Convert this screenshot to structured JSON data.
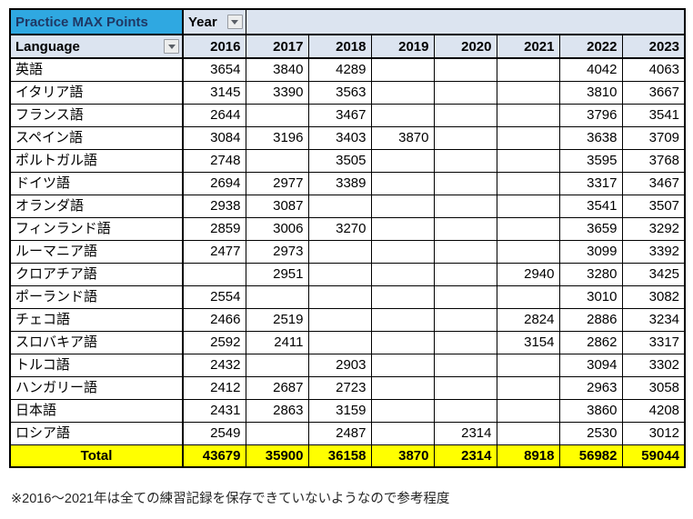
{
  "pivot": {
    "title": "Practice MAX Points",
    "year_field_label": "Year",
    "language_field_label": "Language",
    "years": [
      "2016",
      "2017",
      "2018",
      "2019",
      "2020",
      "2021",
      "2022",
      "2023"
    ],
    "rows": [
      {
        "language": "英語",
        "values": [
          "3654",
          "3840",
          "4289",
          "",
          "",
          "",
          "4042",
          "4063"
        ]
      },
      {
        "language": "イタリア語",
        "values": [
          "3145",
          "3390",
          "3563",
          "",
          "",
          "",
          "3810",
          "3667"
        ]
      },
      {
        "language": "フランス語",
        "values": [
          "2644",
          "",
          "3467",
          "",
          "",
          "",
          "3796",
          "3541"
        ]
      },
      {
        "language": "スペイン語",
        "values": [
          "3084",
          "3196",
          "3403",
          "3870",
          "",
          "",
          "3638",
          "3709"
        ]
      },
      {
        "language": "ポルトガル語",
        "values": [
          "2748",
          "",
          "3505",
          "",
          "",
          "",
          "3595",
          "3768"
        ]
      },
      {
        "language": "ドイツ語",
        "values": [
          "2694",
          "2977",
          "3389",
          "",
          "",
          "",
          "3317",
          "3467"
        ]
      },
      {
        "language": "オランダ語",
        "values": [
          "2938",
          "3087",
          "",
          "",
          "",
          "",
          "3541",
          "3507"
        ]
      },
      {
        "language": "フィンランド語",
        "values": [
          "2859",
          "3006",
          "3270",
          "",
          "",
          "",
          "3659",
          "3292"
        ]
      },
      {
        "language": "ルーマニア語",
        "values": [
          "2477",
          "2973",
          "",
          "",
          "",
          "",
          "3099",
          "3392"
        ]
      },
      {
        "language": "クロアチア語",
        "values": [
          "",
          "2951",
          "",
          "",
          "",
          "2940",
          "3280",
          "3425"
        ]
      },
      {
        "language": "ポーランド語",
        "values": [
          "2554",
          "",
          "",
          "",
          "",
          "",
          "3010",
          "3082"
        ]
      },
      {
        "language": "チェコ語",
        "values": [
          "2466",
          "2519",
          "",
          "",
          "",
          "2824",
          "2886",
          "3234"
        ]
      },
      {
        "language": "スロバキア語",
        "values": [
          "2592",
          "2411",
          "",
          "",
          "",
          "3154",
          "2862",
          "3317"
        ]
      },
      {
        "language": "トルコ語",
        "values": [
          "2432",
          "",
          "2903",
          "",
          "",
          "",
          "3094",
          "3302"
        ]
      },
      {
        "language": "ハンガリー語",
        "values": [
          "2412",
          "2687",
          "2723",
          "",
          "",
          "",
          "2963",
          "3058"
        ]
      },
      {
        "language": "日本語",
        "values": [
          "2431",
          "2863",
          "3159",
          "",
          "",
          "",
          "3860",
          "4208"
        ]
      },
      {
        "language": "ロシア語",
        "values": [
          "2549",
          "",
          "2487",
          "",
          "2314",
          "",
          "2530",
          "3012"
        ]
      }
    ],
    "total": {
      "label": "Total",
      "values": [
        "43679",
        "35900",
        "36158",
        "3870",
        "2314",
        "8918",
        "56982",
        "59044"
      ]
    }
  },
  "footnote": {
    "text": "※2016〜2021年は全ての練習記録を保存できていないようなので参考程度"
  },
  "icons": {
    "year_dropdown": "chevron-down-icon",
    "language_dropdown": "chevron-down-icon"
  },
  "colors": {
    "title_bg": "#2fa8e1",
    "title_text": "#1f3864",
    "header_bg": "#dce4f0",
    "total_bg": "#ffff00",
    "border": "#000000"
  }
}
